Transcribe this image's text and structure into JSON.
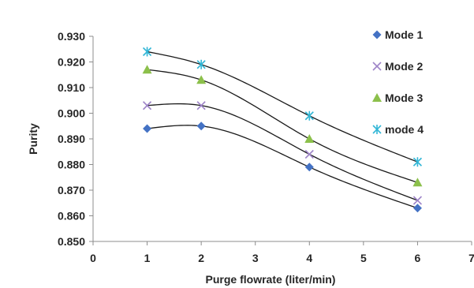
{
  "chart_data": {
    "type": "scatter",
    "title": "",
    "xlabel": "Purge flowrate (liter/min)",
    "ylabel": "Purity",
    "xlim": [
      0,
      7
    ],
    "ylim": [
      0.85,
      0.93
    ],
    "x_ticks": [
      "0",
      "1",
      "2",
      "3",
      "4",
      "5",
      "6",
      "7"
    ],
    "y_ticks": [
      "0.850",
      "0.860",
      "0.870",
      "0.880",
      "0.890",
      "0.900",
      "0.910",
      "0.920",
      "0.930"
    ],
    "grid": "none",
    "legend_position": "top-right",
    "trendline": "smooth curve through each series",
    "series": [
      {
        "name": "Mode 1",
        "marker": "diamond",
        "color": "#4472c4",
        "points": [
          [
            1,
            0.894
          ],
          [
            2,
            0.895
          ],
          [
            4,
            0.879
          ],
          [
            6,
            0.863
          ]
        ]
      },
      {
        "name": "Mode 2",
        "marker": "x",
        "color": "#9e84c8",
        "points": [
          [
            1,
            0.903
          ],
          [
            2,
            0.903
          ],
          [
            4,
            0.884
          ],
          [
            6,
            0.866
          ]
        ]
      },
      {
        "name": "Mode 3",
        "marker": "triangle",
        "color": "#8cc04b",
        "points": [
          [
            1,
            0.917
          ],
          [
            2,
            0.913
          ],
          [
            4,
            0.89
          ],
          [
            6,
            0.873
          ]
        ]
      },
      {
        "name": "mode 4",
        "marker": "asterisk",
        "color": "#31b6d6",
        "points": [
          [
            1,
            0.924
          ],
          [
            2,
            0.919
          ],
          [
            4,
            0.899
          ],
          [
            6,
            0.881
          ]
        ]
      }
    ]
  }
}
